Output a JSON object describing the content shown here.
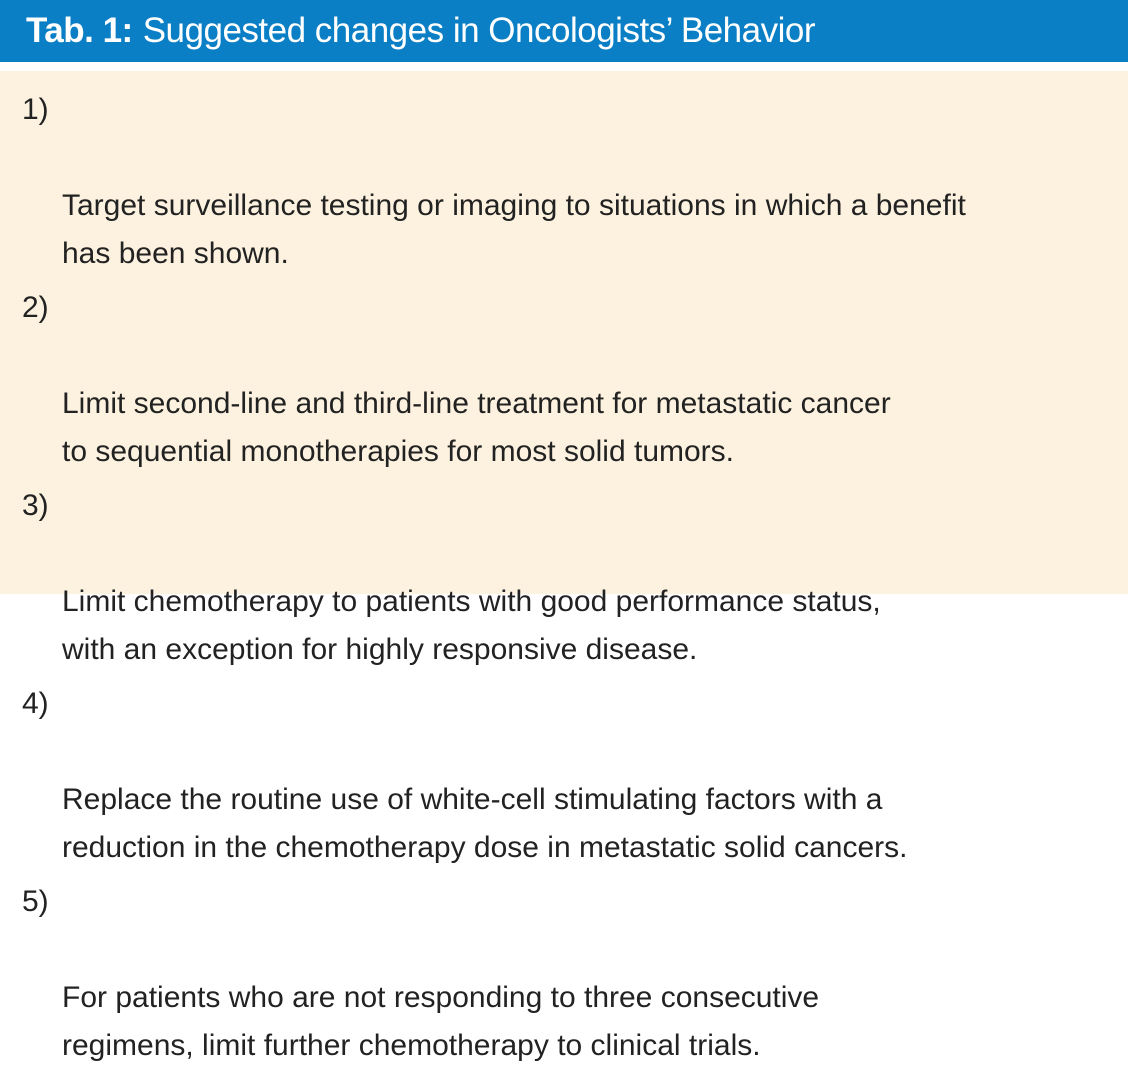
{
  "header": {
    "label": "Tab. 1",
    "title": "Suggested changes in Oncologists’ Behavior"
  },
  "colors": {
    "header_background": "#0a7fc5",
    "body_background": "#fcf2df",
    "text": "#222222"
  },
  "items": [
    {
      "number": "1)",
      "text": "Target surveillance testing or imaging to situations in which a benefit\nhas been shown."
    },
    {
      "number": "2)",
      "text": "Limit second-line and third-line treatment for metastatic cancer\nto sequential monotherapies for most solid tumors."
    },
    {
      "number": "3)",
      "text": "Limit chemotherapy to patients with good performance status,\nwith an exception for highly responsive disease."
    },
    {
      "number": "4)",
      "text": "Replace the routine use of white-cell stimulating factors with a\nreduction in the chemotherapy dose in metastatic solid cancers."
    },
    {
      "number": "5)",
      "text": "For patients who are not responding to three consecutive\nregimens, limit further chemotherapy to clinical trials."
    }
  ]
}
